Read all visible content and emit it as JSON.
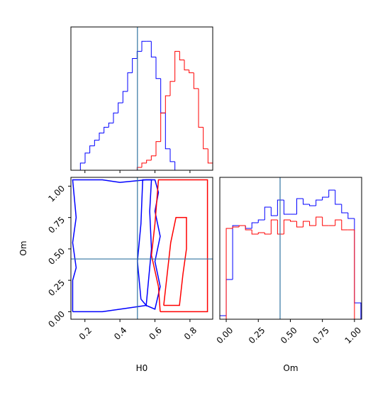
{
  "chart_data": [
    {
      "type": "histogram",
      "xlim": [
        0.12,
        0.93
      ],
      "ylim": [
        0,
        1
      ],
      "xticks": [
        0.2,
        0.4,
        0.6,
        0.8
      ],
      "xtick_labels": false,
      "truth_x": 0.5,
      "truth_color": "#3274a1",
      "bins": [
        0.12,
        0.147,
        0.174,
        0.201,
        0.228,
        0.255,
        0.282,
        0.309,
        0.336,
        0.363,
        0.39,
        0.417,
        0.444,
        0.471,
        0.498,
        0.525,
        0.552,
        0.579,
        0.606,
        0.633,
        0.66,
        0.687,
        0.714,
        0.741,
        0.768,
        0.795,
        0.822,
        0.849,
        0.876,
        0.903,
        0.93
      ],
      "series": [
        {
          "color": "#0000ff",
          "values": [
            0,
            0,
            0.05,
            0.12,
            0.17,
            0.21,
            0.26,
            0.3,
            0.33,
            0.4,
            0.47,
            0.55,
            0.68,
            0.78,
            0.83,
            0.9,
            0.9,
            0.79,
            0.64,
            0.4,
            0.15,
            0.06,
            0,
            0,
            0,
            0,
            0,
            0,
            0,
            0
          ]
        },
        {
          "color": "#ff0000",
          "values": [
            0,
            0,
            0,
            0,
            0,
            0,
            0,
            0,
            0,
            0,
            0,
            0,
            0,
            0,
            0.02,
            0.05,
            0.07,
            0.1,
            0.2,
            0.4,
            0.52,
            0.62,
            0.83,
            0.77,
            0.7,
            0.68,
            0.57,
            0.3,
            0.15,
            0.05
          ]
        }
      ]
    },
    {
      "type": "contour",
      "xlabel": "H0",
      "ylabel": "Om",
      "xlim": [
        0.12,
        0.93
      ],
      "ylim": [
        -0.06,
        1.07
      ],
      "xticks": [
        0.2,
        0.4,
        0.6,
        0.8
      ],
      "yticks": [
        {
          "value": 0,
          "label": "0.00"
        },
        0.25,
        {
          "value": 0.5,
          "label": "0.50"
        },
        0.75,
        {
          "value": 1,
          "label": "1.00"
        }
      ],
      "truth_x": 0.5,
      "truth_y": 0.42,
      "truth_color": "#3274a1",
      "series": [
        {
          "color": "#0000ff",
          "x": [
            0.13,
            0.13,
            0.15,
            0.13,
            0.15,
            0.13,
            0.3,
            0.4,
            0.55,
            0.6,
            0.62,
            0.6,
            0.63,
            0.6,
            0.63,
            0.6,
            0.55,
            0.45,
            0.3,
            0.13
          ],
          "y": [
            0,
            0.25,
            0.35,
            0.55,
            0.75,
            1.05,
            1.05,
            1.03,
            1.05,
            1.05,
            0.95,
            0.8,
            0.6,
            0.4,
            0.2,
            0.02,
            0.05,
            0.03,
            0,
            0
          ]
        },
        {
          "color": "#0000ff",
          "x": [
            0.52,
            0.5,
            0.52,
            0.53,
            0.58,
            0.57,
            0.58,
            0.56,
            0.55,
            0.52
          ],
          "y": [
            0.1,
            0.4,
            0.7,
            1.05,
            1.05,
            0.8,
            0.5,
            0.2,
            0.05,
            0.1
          ]
        },
        {
          "color": "#ff0000",
          "x": [
            0.63,
            0.62,
            0.58,
            0.6,
            0.62,
            0.9,
            0.9,
            0.63
          ],
          "y": [
            0,
            0.2,
            0.45,
            0.7,
            1.05,
            1.05,
            0,
            0
          ]
        },
        {
          "color": "#ff0000",
          "x": [
            0.65,
            0.67,
            0.69,
            0.72,
            0.78,
            0.78,
            0.76,
            0.74,
            0.65
          ],
          "y": [
            0.05,
            0.3,
            0.55,
            0.75,
            0.75,
            0.5,
            0.3,
            0.05,
            0.05
          ]
        }
      ]
    },
    {
      "type": "histogram",
      "xlabel": "Om",
      "xlim": [
        -0.05,
        1.056
      ],
      "ylim": [
        0,
        1
      ],
      "xticks": [
        {
          "value": 0,
          "label": "0.00"
        },
        0.25,
        {
          "value": 0.5,
          "label": "0.50"
        },
        0.75,
        {
          "value": 1,
          "label": "1.00"
        }
      ],
      "xtick_labels": true,
      "truth_x": 0.42,
      "truth_color": "#3274a1",
      "bins": [
        -0.05,
        0,
        0.05,
        0.1,
        0.15,
        0.2,
        0.25,
        0.3,
        0.35,
        0.4,
        0.45,
        0.5,
        0.55,
        0.6,
        0.65,
        0.7,
        0.75,
        0.8,
        0.85,
        0.9,
        0.95,
        1,
        1.05
      ],
      "series": [
        {
          "color": "#0000ff",
          "values": [
            0.025,
            0.28,
            0.66,
            0.66,
            0.64,
            0.68,
            0.7,
            0.79,
            0.73,
            0.84,
            0.74,
            0.74,
            0.85,
            0.81,
            0.8,
            0.84,
            0.86,
            0.91,
            0.81,
            0.75,
            0.71,
            0.115
          ]
        },
        {
          "color": "#ff0000",
          "values": [
            0,
            0.64,
            0.65,
            0.66,
            0.63,
            0.6,
            0.61,
            0.6,
            0.7,
            0.6,
            0.7,
            0.69,
            0.65,
            0.69,
            0.66,
            0.72,
            0.66,
            0.66,
            0.7,
            0.63,
            0.63,
            0
          ]
        }
      ]
    }
  ]
}
